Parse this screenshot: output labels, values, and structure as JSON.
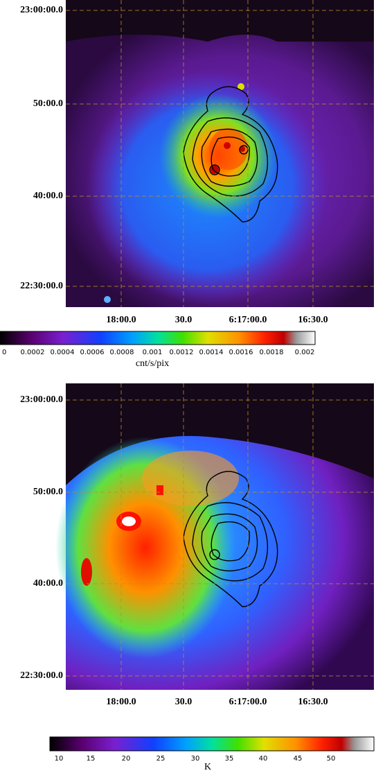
{
  "panels": [
    {
      "y_labels": [
        "23:00:00.0",
        "50:00.0",
        "40:00.0",
        "22:30:00.0"
      ],
      "x_labels": [
        "18:00.0",
        "30.0",
        "6:17:00.0",
        "16:30.0"
      ],
      "colorbar": {
        "labels": [
          "0",
          "0.0002",
          "0.0004",
          "0.0006",
          "0.0008",
          "0.001",
          "0.0012",
          "0.0014",
          "0.0016",
          "0.0018",
          "0.002"
        ],
        "unit": "cnt/s/pix"
      }
    },
    {
      "y_labels": [
        "23:00:00.0",
        "50:00.0",
        "40:00.0",
        "22:30:00.0"
      ],
      "x_labels": [
        "18:00.0",
        "30.0",
        "6:17:00.0",
        "16:30.0"
      ],
      "colorbar": {
        "labels": [
          "10",
          "15",
          "20",
          "25",
          "30",
          "35",
          "40",
          "45",
          "50"
        ],
        "unit": "K"
      }
    }
  ]
}
